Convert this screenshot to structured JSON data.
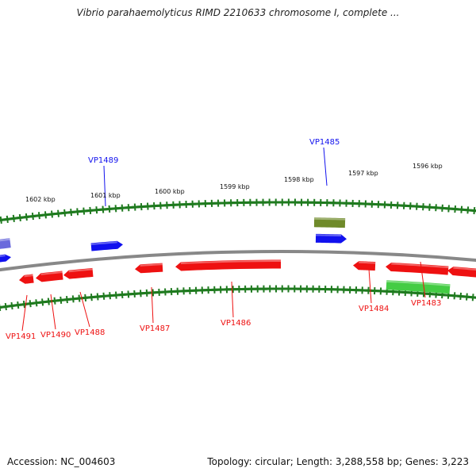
{
  "title": "Vibrio parahaemolyticus RIMD 2210633 chromosome I, complete ...",
  "footer": {
    "accession": "Accession: NC_004603",
    "summary": "Topology: circular; Length: 3,288,558 bp; Genes: 3,223"
  },
  "colors": {
    "reverse_strand": "#ee1111",
    "forward_strand": "#1111ee",
    "rna": "#44cc44",
    "other": "#6f8a2a",
    "partial": "#6a6adc",
    "backbone": "#888888",
    "ticks": "#1f7a1f"
  },
  "scale_labels": [
    "1602 kbp",
    "1601 kbp",
    "1600 kbp",
    "1599 kbp",
    "1598 kbp",
    "1597 kbp",
    "1596 kbp"
  ],
  "gene_labels": [
    {
      "text": "VP1489",
      "strand": "forward"
    },
    {
      "text": "VP1485",
      "strand": "forward"
    },
    {
      "text": "VP1491",
      "strand": "reverse"
    },
    {
      "text": "VP1490",
      "strand": "reverse"
    },
    {
      "text": "VP1488",
      "strand": "reverse"
    },
    {
      "text": "VP1487",
      "strand": "reverse"
    },
    {
      "text": "VP1486",
      "strand": "reverse"
    },
    {
      "text": "VP1484",
      "strand": "reverse"
    },
    {
      "text": "VP1483",
      "strand": "reverse"
    }
  ]
}
